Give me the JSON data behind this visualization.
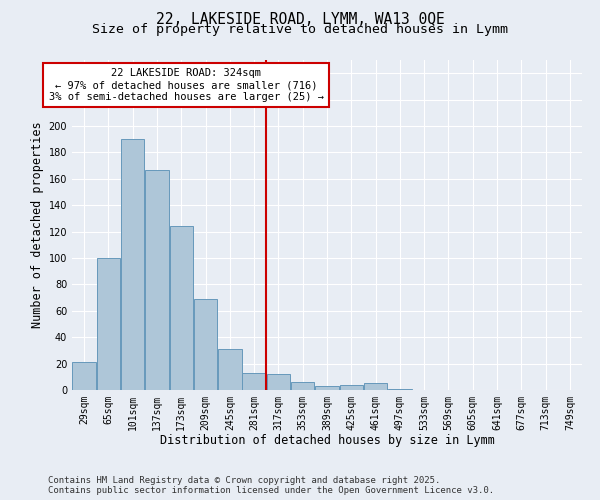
{
  "title_line1": "22, LAKESIDE ROAD, LYMM, WA13 0QE",
  "title_line2": "Size of property relative to detached houses in Lymm",
  "xlabel": "Distribution of detached houses by size in Lymm",
  "ylabel": "Number of detached properties",
  "categories": [
    "29sqm",
    "65sqm",
    "101sqm",
    "137sqm",
    "173sqm",
    "209sqm",
    "245sqm",
    "281sqm",
    "317sqm",
    "353sqm",
    "389sqm",
    "425sqm",
    "461sqm",
    "497sqm",
    "533sqm",
    "569sqm",
    "605sqm",
    "641sqm",
    "677sqm",
    "713sqm",
    "749sqm"
  ],
  "values": [
    21,
    100,
    190,
    167,
    124,
    69,
    31,
    13,
    12,
    6,
    3,
    4,
    5,
    1,
    0,
    0,
    0,
    0,
    0,
    0,
    0
  ],
  "bar_color": "#aec6d8",
  "bar_edge_color": "#6699bb",
  "bar_linewidth": 0.7,
  "vline_color": "#cc0000",
  "annotation_line1": "22 LAKESIDE ROAD: 324sqm",
  "annotation_line2": "← 97% of detached houses are smaller (716)",
  "annotation_line3": "3% of semi-detached houses are larger (25) →",
  "annotation_box_color": "#ffffff",
  "annotation_box_edge": "#cc0000",
  "ylim": [
    0,
    250
  ],
  "yticks": [
    0,
    20,
    40,
    60,
    80,
    100,
    120,
    140,
    160,
    180,
    200,
    220,
    240
  ],
  "bg_color": "#e8edf4",
  "plot_bg_color": "#e8edf4",
  "footer_line1": "Contains HM Land Registry data © Crown copyright and database right 2025.",
  "footer_line2": "Contains public sector information licensed under the Open Government Licence v3.0.",
  "title_fontsize": 10.5,
  "subtitle_fontsize": 9.5,
  "axis_label_fontsize": 8.5,
  "tick_fontsize": 7,
  "annotation_fontsize": 7.5,
  "footer_fontsize": 6.5,
  "vline_pos": 7.5
}
